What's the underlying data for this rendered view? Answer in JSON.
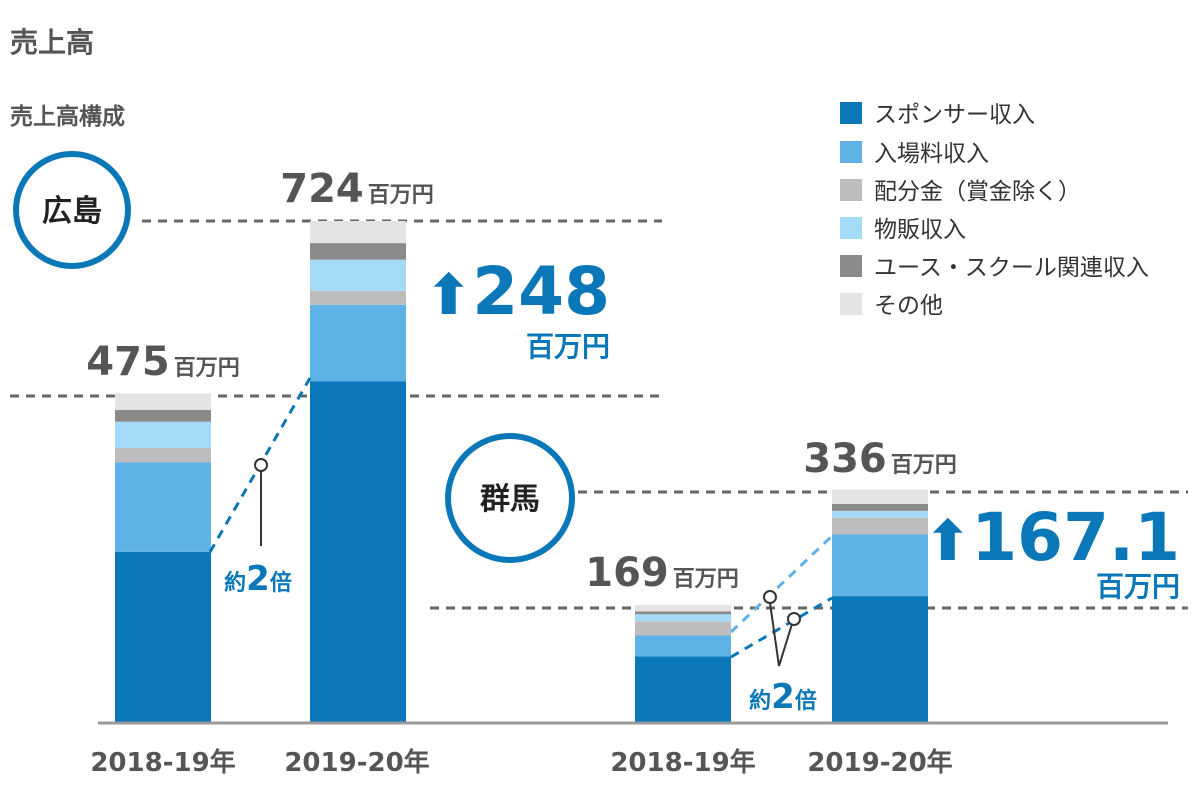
{
  "page": {
    "title": "売上高",
    "subtitle": "売上高構成"
  },
  "colors": {
    "sponsor": "#0a77b8",
    "ticket": "#5eb2e5",
    "distribution": "#bdbdbd",
    "merch": "#a5daf6",
    "youth": "#8a8a8a",
    "other": "#e4e4e4",
    "accent": "#0a77b8",
    "axis": "#9a9a9a"
  },
  "legend": [
    {
      "key": "sponsor",
      "label": "スポンサー収入"
    },
    {
      "key": "ticket",
      "label": "入場料収入"
    },
    {
      "key": "distribution",
      "label": "配分金（賞金除く）"
    },
    {
      "key": "merch",
      "label": "物販収入"
    },
    {
      "key": "youth",
      "label": "ユース・スクール関連収入"
    },
    {
      "key": "other",
      "label": "その他"
    }
  ],
  "chart_data": {
    "type": "bar",
    "stacked": true,
    "title": "売上高構成",
    "unit": "百万円",
    "groups": [
      {
        "name": "広島",
        "increase": {
          "arrow": "⬆",
          "value": "248",
          "unit": "百万円"
        },
        "multiplier": {
          "prefix": "約",
          "value": "2",
          "suffix": "倍"
        },
        "bars": [
          {
            "category": "2018-19年",
            "total_label": "475",
            "total": 475,
            "segments": {
              "sponsor": 246,
              "ticket": 129,
              "distribution": 21,
              "merch": 38,
              "youth": 17,
              "other": 24
            }
          },
          {
            "category": "2019-20年",
            "total_label": "724",
            "total": 724,
            "segments": {
              "sponsor": 492,
              "ticket": 111,
              "distribution": 20,
              "merch": 45,
              "youth": 24,
              "other": 32
            }
          }
        ]
      },
      {
        "name": "群馬",
        "increase": {
          "arrow": "⬆",
          "value": "167.1",
          "unit": "百万円"
        },
        "multiplier": {
          "prefix": "約",
          "value": "2",
          "suffix": "倍"
        },
        "bars": [
          {
            "category": "2018-19年",
            "total_label": "169",
            "total": 169,
            "segments": {
              "sponsor": 95,
              "ticket": 30,
              "distribution": 20,
              "merch": 11,
              "youth": 4,
              "other": 9
            }
          },
          {
            "category": "2019-20年",
            "total_label": "336",
            "total": 336,
            "segments": {
              "sponsor": 182,
              "ticket": 89,
              "distribution": 24,
              "merch": 10,
              "youth": 10,
              "other": 21
            }
          }
        ]
      }
    ]
  }
}
